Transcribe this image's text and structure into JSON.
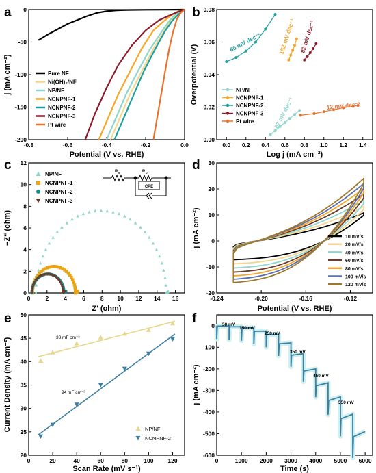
{
  "chart_data": [
    {
      "panel": "a",
      "type": "line",
      "xlabel": "Potential (V vs. RHE)",
      "ylabel": "j (mA cm⁻²)",
      "xlim": [
        -0.8,
        0.0
      ],
      "ylim": [
        -200,
        0
      ],
      "xticks": [
        "-0.8",
        "-0.6",
        "-0.4",
        "-0.2",
        "0.0"
      ],
      "yticks": [
        "0",
        "-50",
        "-100",
        "-150",
        "-200"
      ],
      "legend_position": "lower-left",
      "series": [
        {
          "name": "Pure NF",
          "color": "#000000",
          "x": [
            -0.75,
            -0.7,
            -0.6,
            -0.5,
            -0.45,
            -0.4,
            -0.35,
            -0.3,
            -0.2,
            -0.1,
            0.0
          ],
          "y": [
            -47,
            -38,
            -22,
            -10,
            -5,
            -2.5,
            -1.2,
            -0.6,
            -0.3,
            -0.2,
            0
          ]
        },
        {
          "name": "Ni(OH)₂/NF",
          "color": "#F6D58E",
          "x": [
            -0.38,
            -0.33,
            -0.28,
            -0.22,
            -0.16,
            -0.11,
            -0.07,
            -0.04,
            -0.02,
            0.0
          ],
          "y": [
            -200,
            -165,
            -130,
            -95,
            -60,
            -35,
            -18,
            -8,
            -3,
            0
          ]
        },
        {
          "name": "NP/NF",
          "color": "#8ED6CC",
          "x": [
            -0.4,
            -0.35,
            -0.3,
            -0.24,
            -0.18,
            -0.12,
            -0.08,
            -0.05,
            -0.02,
            0.0
          ],
          "y": [
            -200,
            -165,
            -130,
            -95,
            -62,
            -35,
            -18,
            -8,
            -3,
            0
          ]
        },
        {
          "name": "NCNPNF-1",
          "color": "#F5A623",
          "x": [
            -0.44,
            -0.39,
            -0.34,
            -0.28,
            -0.22,
            -0.16,
            -0.1,
            -0.06,
            -0.03,
            0.0
          ],
          "y": [
            -200,
            -165,
            -130,
            -95,
            -60,
            -32,
            -16,
            -7,
            -2,
            0
          ]
        },
        {
          "name": "NCNPNF-2",
          "color": "#1A9E9E",
          "x": [
            -0.36,
            -0.31,
            -0.26,
            -0.21,
            -0.15,
            -0.1,
            -0.06,
            -0.03,
            -0.01,
            0.0
          ],
          "y": [
            -200,
            -165,
            -130,
            -95,
            -60,
            -33,
            -16,
            -7,
            -2,
            0
          ]
        },
        {
          "name": "NCNPNF-3",
          "color": "#8B1A2B",
          "x": [
            -0.51,
            -0.46,
            -0.4,
            -0.34,
            -0.27,
            -0.2,
            -0.13,
            -0.07,
            -0.03,
            0.0
          ],
          "y": [
            -200,
            -160,
            -120,
            -85,
            -55,
            -32,
            -16,
            -8,
            -3,
            0
          ]
        },
        {
          "name": "Pt wire",
          "color": "#E8712B",
          "x": [
            -0.16,
            -0.14,
            -0.12,
            -0.1,
            -0.08,
            -0.06,
            -0.04,
            -0.02,
            0.0
          ],
          "y": [
            -200,
            -165,
            -130,
            -95,
            -62,
            -35,
            -15,
            -5,
            0
          ]
        }
      ]
    },
    {
      "panel": "b",
      "type": "scatter",
      "xlabel": "Log j (mA cm⁻²)",
      "ylabel": "Overpotential (V)",
      "xlim": [
        -0.1,
        1.5
      ],
      "ylim": [
        0,
        0.08
      ],
      "xticks": [
        "0.0",
        "0.2",
        "0.4",
        "0.6",
        "0.8",
        "1.0",
        "1.2",
        "1.4"
      ],
      "yticks": [
        "0.00",
        "0.02",
        "0.04",
        "0.06",
        "0.08"
      ],
      "legend_position": "lower-left",
      "series": [
        {
          "name": "NP/NF",
          "color": "#8ED6CC",
          "x": [
            0.45,
            0.5,
            0.55,
            0.6,
            0.65,
            0.7,
            0.75
          ],
          "y": [
            0.003,
            0.0055,
            0.008,
            0.0105,
            0.013,
            0.0155,
            0.018
          ]
        },
        {
          "name": "NCNPNF-1",
          "color": "#F5A623",
          "x": [
            0.64,
            0.66,
            0.68,
            0.7,
            0.72
          ],
          "y": [
            0.049,
            0.052,
            0.055,
            0.058,
            0.062
          ]
        },
        {
          "name": "NCNPNF-2",
          "color": "#1A9E9E",
          "x": [
            0.0,
            0.1,
            0.2,
            0.3,
            0.4,
            0.5
          ],
          "y": [
            0.048,
            0.0505,
            0.0545,
            0.06,
            0.068,
            0.077
          ]
        },
        {
          "name": "NCNPNF-3",
          "color": "#8B1A2B",
          "x": [
            0.8,
            0.83,
            0.86,
            0.89,
            0.92
          ],
          "y": [
            0.049,
            0.051,
            0.0535,
            0.056,
            0.059
          ]
        },
        {
          "name": "Pt wire",
          "color": "#E8712B",
          "x": [
            0.76,
            0.9,
            1.0,
            1.1,
            1.2,
            1.3,
            1.35
          ],
          "y": [
            0.015,
            0.016,
            0.0172,
            0.0184,
            0.0196,
            0.0205,
            0.021
          ]
        }
      ],
      "annotations": [
        {
          "text": "60 mV dec⁻¹",
          "color": "#1A9E9E"
        },
        {
          "text": "152 mV dec⁻¹",
          "color": "#F5A623"
        },
        {
          "text": "82 mV dec⁻¹",
          "color": "#8B1A2B"
        },
        {
          "text": "12 mV dec⁻¹",
          "color": "#E8712B"
        },
        {
          "text": "82 mV dec⁻¹",
          "color": "#8ED6CC"
        }
      ]
    },
    {
      "panel": "c",
      "type": "scatter",
      "xlabel": "Z' (ohm)",
      "ylabel": "−Z'' (ohm)",
      "xlim": [
        0,
        17
      ],
      "ylim": [
        0,
        12
      ],
      "xticks": [
        "0",
        "2",
        "4",
        "6",
        "8",
        "10",
        "12",
        "14",
        "16"
      ],
      "yticks": [
        "0",
        "2",
        "4",
        "6",
        "8",
        "10",
        "12"
      ],
      "legend_position": "upper-left",
      "circuit_labels": {
        "rs": "R",
        "rs_sub": "s",
        "rct": "R",
        "rct_sub": "ct",
        "cpe": "CPE"
      },
      "series": [
        {
          "name": "NP/NF",
          "color": "#8ED6CC",
          "center": 7.9,
          "radius": 7.1,
          "y_scale": 1.07
        },
        {
          "name": "NCNPNF-1",
          "color": "#E8A317",
          "center": 2.75,
          "radius": 2.35,
          "y_scale": 1.04
        },
        {
          "name": "NCNPNF-2",
          "color": "#1A8F8F",
          "center": 2.1,
          "radius": 1.75,
          "y_scale": 1.0
        },
        {
          "name": "NCNPNF-3",
          "color": "#6B3A2A",
          "center": 2.05,
          "radius": 1.7,
          "y_scale": 1.02
        }
      ]
    },
    {
      "panel": "d",
      "type": "line",
      "xlabel": "Potential (V vs. RHE)",
      "ylabel": "j (mA cm⁻²)",
      "xlim": [
        -0.24,
        -0.1
      ],
      "ylim": [
        -20,
        30
      ],
      "xticks": [
        "-0.24",
        "-0.20",
        "-0.16",
        "-0.12"
      ],
      "yticks": [
        "-20",
        "-10",
        "0",
        "10",
        "20",
        "30"
      ],
      "legend_position": "lower-right",
      "series": [
        {
          "name": "10 mV/s",
          "color": "#000000",
          "amp": 0.45
        },
        {
          "name": "20 mV/s",
          "color": "#F6D58E",
          "amp": 0.55
        },
        {
          "name": "40 mV/s",
          "color": "#8ED6CC",
          "amp": 0.65
        },
        {
          "name": "60 mV/s",
          "color": "#6B3A2A",
          "amp": 0.75
        },
        {
          "name": "80 mV/s",
          "color": "#F5A623",
          "amp": 0.84
        },
        {
          "name": "100 mV/s",
          "color": "#5B6FB0",
          "amp": 0.92
        },
        {
          "name": "120 mV/s",
          "color": "#A0782A",
          "amp": 1.0
        }
      ]
    },
    {
      "panel": "e",
      "type": "scatter",
      "xlabel": "Scan Rate (mV s⁻¹)",
      "ylabel": "Current Density (mA cm⁻²)",
      "xlim": [
        0,
        130
      ],
      "ylim": [
        20,
        50
      ],
      "xticks": [
        "0",
        "20",
        "40",
        "60",
        "80",
        "100",
        "120"
      ],
      "yticks": [
        "20",
        "25",
        "30",
        "35",
        "40",
        "45",
        "50"
      ],
      "legend_position": "lower-right",
      "series": [
        {
          "name": "NP/NF",
          "color": "#E6D68A",
          "x": [
            10,
            20,
            40,
            60,
            80,
            100,
            120
          ],
          "y": [
            40.2,
            42.0,
            43.9,
            45.2,
            46.0,
            46.8,
            48.2
          ]
        },
        {
          "name": "NCNPNF-2",
          "color": "#3E7FA5",
          "x": [
            10,
            20,
            40,
            60,
            80,
            100,
            120
          ],
          "y": [
            24.0,
            26.5,
            30.8,
            35.0,
            38.5,
            41.7,
            44.8
          ]
        }
      ],
      "annotations": [
        {
          "text": "33 mF cm⁻²"
        },
        {
          "text": "94 mF cm⁻²"
        }
      ]
    },
    {
      "panel": "f",
      "type": "line",
      "xlabel": "Time (s)",
      "ylabel": "j (mA cm⁻²)",
      "xlim": [
        0,
        6300
      ],
      "ylim": [
        -600,
        50
      ],
      "xticks": [
        "0",
        "1000",
        "2000",
        "3000",
        "4000",
        "5000",
        "6000"
      ],
      "yticks": [
        "0",
        "-100",
        "-200",
        "-300",
        "-400",
        "-500",
        "-600"
      ],
      "steps": [
        {
          "label": "50 mV",
          "t0": 0,
          "j": -2
        },
        {
          "label": "150 mV",
          "t0": 500,
          "j": -5
        },
        {
          "label": "250 mV",
          "t0": 1000,
          "j": -10
        },
        {
          "label": "",
          "t0": 1500,
          "j": -25
        },
        {
          "label": "",
          "t0": 2000,
          "j": -40
        },
        {
          "label": "",
          "t0": 2500,
          "j": -80
        },
        {
          "label": "350 mV",
          "t0": 3000,
          "j": -130
        },
        {
          "label": "",
          "t0": 3500,
          "j": -200
        },
        {
          "label": "450 mV",
          "t0": 4000,
          "j": -265
        },
        {
          "label": "",
          "t0": 4500,
          "j": -330
        },
        {
          "label": "550 mV",
          "t0": 5000,
          "j": -410
        },
        {
          "label": "",
          "t0": 5500,
          "j": -490
        }
      ],
      "color": "#3E7FA5"
    }
  ],
  "panel_labels": [
    "a",
    "b",
    "c",
    "d",
    "e",
    "f"
  ]
}
